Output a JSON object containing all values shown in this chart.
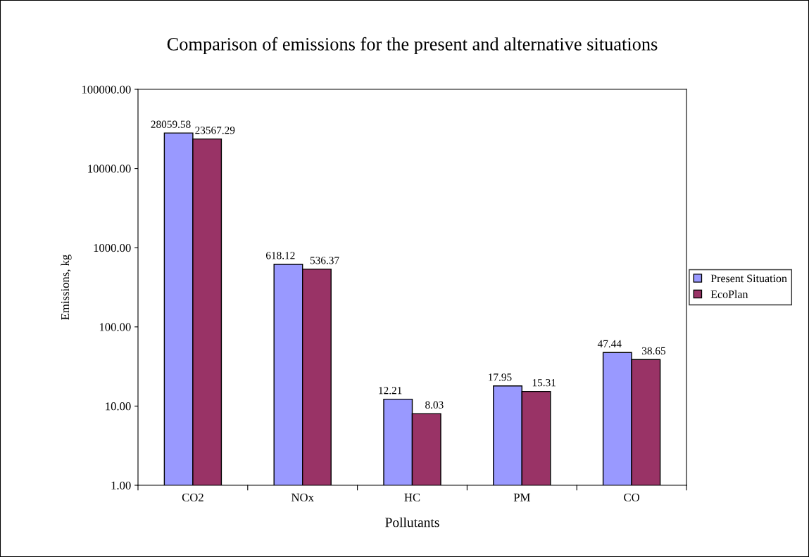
{
  "chart_data": {
    "type": "bar",
    "title": "Comparison of emissions for the present and alternative situations",
    "xlabel": "Pollutants",
    "ylabel": "Emissions, kg",
    "categories": [
      "CO2",
      "NOx",
      "HC",
      "PM",
      "CO"
    ],
    "series": [
      {
        "name": "Present Situation",
        "color": "#9999ff",
        "values": [
          28059.58,
          618.12,
          12.21,
          17.95,
          47.44
        ]
      },
      {
        "name": "EcoPlan",
        "color": "#993366",
        "values": [
          23567.29,
          536.37,
          8.03,
          15.31,
          38.65
        ]
      }
    ],
    "log": true,
    "ylim": [
      1,
      100000
    ],
    "yticks": [
      {
        "value": 1,
        "label": "1.00"
      },
      {
        "value": 10,
        "label": "10.00"
      },
      {
        "value": 100,
        "label": "100.00"
      },
      {
        "value": 1000,
        "label": "1000.00"
      },
      {
        "value": 10000,
        "label": "10000.00"
      },
      {
        "value": 100000,
        "label": "100000.00"
      }
    ],
    "data_labels": true,
    "legend": "right",
    "grid": false
  }
}
